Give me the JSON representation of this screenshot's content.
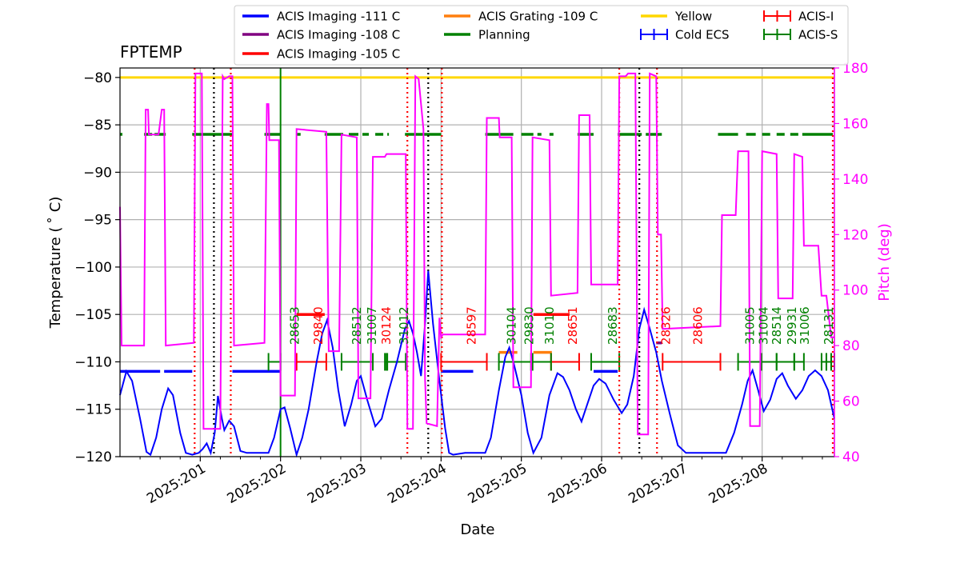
{
  "chart_data": {
    "type": "line",
    "title": "FPTEMP",
    "xlabel": "Date",
    "ylabel": "Temperature ($^\\circ$C)",
    "ylabel_display": "Temperature ( ˚ C)",
    "y2label": "Pitch (deg)",
    "x_axis": {
      "unit": "day of year 2025",
      "range": [
        200.0,
        208.9
      ],
      "ticks": [
        201,
        202,
        203,
        204,
        205,
        206,
        207,
        208
      ],
      "tick_labels": [
        "2025:201",
        "2025:202",
        "2025:203",
        "2025:204",
        "2025:205",
        "2025:206",
        "2025:207",
        "2025:208"
      ]
    },
    "y_axis": {
      "range": [
        -120,
        -79
      ],
      "ticks": [
        -120,
        -115,
        -110,
        -105,
        -100,
        -95,
        -90,
        -85,
        -80
      ],
      "tick_labels": [
        "−120",
        "−115",
        "−110",
        "−105",
        "−100",
        "−95",
        "−90",
        "−85",
        "−80"
      ]
    },
    "y2_axis": {
      "range": [
        40,
        180
      ],
      "ticks": [
        40,
        60,
        80,
        100,
        120,
        140,
        160,
        180
      ],
      "tick_labels": [
        "40",
        "60",
        "80",
        "100",
        "120",
        "140",
        "160",
        "180"
      ],
      "color": "#ff00ff"
    },
    "grid": true,
    "legend": {
      "placement": "top",
      "entries": [
        {
          "label": "ACIS Imaging -111 C",
          "color": "#0000ff",
          "style": "line"
        },
        {
          "label": "ACIS Imaging -108 C",
          "color": "#800080",
          "style": "line"
        },
        {
          "label": "ACIS Imaging -105 C",
          "color": "#ff0000",
          "style": "line"
        },
        {
          "label": "ACIS Grating -109 C",
          "color": "#ff7f0e",
          "style": "line"
        },
        {
          "label": "Planning",
          "color": "#008000",
          "style": "line"
        },
        {
          "label": "Yellow",
          "color": "#ffd700",
          "style": "line"
        },
        {
          "label": "Cold ECS",
          "color": "#0000ff",
          "style": "errorbar"
        },
        {
          "label": "ACIS-I",
          "color": "#ff0000",
          "style": "errorbar"
        },
        {
          "label": "ACIS-S",
          "color": "#008000",
          "style": "errorbar"
        }
      ]
    },
    "yellow_limit": -80,
    "planning_limit": -86,
    "imaging_111_level": -111,
    "fptemp_series": {
      "name": "FPTEMP",
      "color": "#0000ff",
      "points": [
        [
          200.0,
          -113.5
        ],
        [
          200.08,
          -111
        ],
        [
          200.15,
          -112
        ],
        [
          200.25,
          -116
        ],
        [
          200.33,
          -119.5
        ],
        [
          200.38,
          -119.8
        ],
        [
          200.45,
          -118
        ],
        [
          200.52,
          -115
        ],
        [
          200.6,
          -112.8
        ],
        [
          200.66,
          -113.5
        ],
        [
          200.75,
          -117.5
        ],
        [
          200.82,
          -119.6
        ],
        [
          200.9,
          -119.8
        ],
        [
          200.98,
          -119.6
        ],
        [
          201.03,
          -119.2
        ],
        [
          201.08,
          -118.6
        ],
        [
          201.13,
          -119.6
        ],
        [
          201.18,
          -117.5
        ],
        [
          201.22,
          -113.6
        ],
        [
          201.27,
          -116
        ],
        [
          201.3,
          -117.2
        ],
        [
          201.36,
          -116.2
        ],
        [
          201.42,
          -116.8
        ],
        [
          201.5,
          -119.4
        ],
        [
          201.58,
          -119.6
        ],
        [
          201.72,
          -119.6
        ],
        [
          201.85,
          -119.6
        ],
        [
          201.92,
          -118
        ],
        [
          202.0,
          -115
        ],
        [
          202.05,
          -114.8
        ],
        [
          202.12,
          -117
        ],
        [
          202.2,
          -119.8
        ],
        [
          202.27,
          -118
        ],
        [
          202.35,
          -115
        ],
        [
          202.45,
          -110
        ],
        [
          202.52,
          -107
        ],
        [
          202.58,
          -105.6
        ],
        [
          202.65,
          -108.5
        ],
        [
          202.72,
          -113
        ],
        [
          202.8,
          -116.8
        ],
        [
          202.88,
          -114.5
        ],
        [
          202.95,
          -112
        ],
        [
          203.0,
          -111.5
        ],
        [
          203.08,
          -114
        ],
        [
          203.18,
          -116.8
        ],
        [
          203.26,
          -116
        ],
        [
          203.35,
          -113
        ],
        [
          203.45,
          -110
        ],
        [
          203.55,
          -106.5
        ],
        [
          203.6,
          -105.7
        ],
        [
          203.65,
          -107
        ],
        [
          203.7,
          -109
        ],
        [
          203.75,
          -111.5
        ],
        [
          203.8,
          -106
        ],
        [
          203.84,
          -100.4
        ],
        [
          203.9,
          -106
        ],
        [
          203.98,
          -112
        ],
        [
          204.05,
          -117
        ],
        [
          204.1,
          -119.6
        ],
        [
          204.15,
          -119.8
        ],
        [
          204.3,
          -119.6
        ],
        [
          204.55,
          -119.6
        ],
        [
          204.62,
          -118
        ],
        [
          204.72,
          -113
        ],
        [
          204.8,
          -109.5
        ],
        [
          204.85,
          -108.5
        ],
        [
          204.9,
          -110
        ],
        [
          205.0,
          -113.5
        ],
        [
          205.08,
          -117.5
        ],
        [
          205.15,
          -119.6
        ],
        [
          205.25,
          -118
        ],
        [
          205.35,
          -113.5
        ],
        [
          205.45,
          -111.2
        ],
        [
          205.52,
          -111.6
        ],
        [
          205.6,
          -113
        ],
        [
          205.68,
          -115
        ],
        [
          205.75,
          -116.3
        ],
        [
          205.82,
          -114.5
        ],
        [
          205.9,
          -112.5
        ],
        [
          205.97,
          -111.8
        ],
        [
          206.05,
          -112.3
        ],
        [
          206.15,
          -114
        ],
        [
          206.25,
          -115.4
        ],
        [
          206.32,
          -114.5
        ],
        [
          206.4,
          -111.5
        ],
        [
          206.47,
          -106.5
        ],
        [
          206.53,
          -104.5
        ],
        [
          206.6,
          -106.5
        ],
        [
          206.68,
          -109
        ],
        [
          206.75,
          -112
        ],
        [
          206.85,
          -115.5
        ],
        [
          206.95,
          -118.8
        ],
        [
          207.05,
          -119.6
        ],
        [
          207.2,
          -119.6
        ],
        [
          207.4,
          -119.6
        ],
        [
          207.55,
          -119.6
        ],
        [
          207.65,
          -117.5
        ],
        [
          207.75,
          -114.5
        ],
        [
          207.82,
          -112
        ],
        [
          207.88,
          -110.9
        ],
        [
          207.95,
          -113
        ],
        [
          208.02,
          -115.2
        ],
        [
          208.1,
          -114
        ],
        [
          208.18,
          -111.8
        ],
        [
          208.25,
          -111.2
        ],
        [
          208.32,
          -112.5
        ],
        [
          208.42,
          -113.9
        ],
        [
          208.5,
          -113
        ],
        [
          208.58,
          -111.5
        ],
        [
          208.66,
          -110.9
        ],
        [
          208.74,
          -111.5
        ],
        [
          208.82,
          -113
        ],
        [
          208.9,
          -116
        ]
      ]
    },
    "pitch_series": {
      "name": "Pitch",
      "color": "#ff00ff",
      "points": [
        [
          200.0,
          130
        ],
        [
          200.02,
          80
        ],
        [
          200.3,
          80
        ],
        [
          200.32,
          165
        ],
        [
          200.35,
          165
        ],
        [
          200.36,
          156
        ],
        [
          200.48,
          156
        ],
        [
          200.52,
          165
        ],
        [
          200.55,
          165
        ],
        [
          200.57,
          80
        ],
        [
          200.92,
          81
        ],
        [
          200.94,
          178
        ],
        [
          201.02,
          178
        ],
        [
          201.04,
          50
        ],
        [
          201.25,
          50
        ],
        [
          201.28,
          177
        ],
        [
          201.3,
          176
        ],
        [
          201.36,
          177
        ],
        [
          201.4,
          177
        ],
        [
          201.42,
          80
        ],
        [
          201.8,
          81
        ],
        [
          201.83,
          167
        ],
        [
          201.85,
          167
        ],
        [
          201.86,
          154
        ],
        [
          201.98,
          154
        ],
        [
          202.0,
          62
        ],
        [
          202.18,
          62
        ],
        [
          202.2,
          158
        ],
        [
          202.57,
          157
        ],
        [
          202.6,
          78
        ],
        [
          202.73,
          78
        ],
        [
          202.76,
          156
        ],
        [
          202.95,
          155
        ],
        [
          202.97,
          61
        ],
        [
          203.12,
          61
        ],
        [
          203.15,
          148
        ],
        [
          203.3,
          148
        ],
        [
          203.32,
          149
        ],
        [
          203.56,
          149
        ],
        [
          203.58,
          50
        ],
        [
          203.65,
          50
        ],
        [
          203.68,
          177
        ],
        [
          203.72,
          176
        ],
        [
          203.78,
          158
        ],
        [
          203.8,
          68
        ],
        [
          203.82,
          52
        ],
        [
          203.95,
          51
        ],
        [
          203.98,
          90
        ],
        [
          204.0,
          83
        ],
        [
          204.02,
          84
        ],
        [
          204.55,
          84
        ],
        [
          204.57,
          162
        ],
        [
          204.72,
          162
        ],
        [
          204.73,
          155
        ],
        [
          204.88,
          155
        ],
        [
          204.9,
          65
        ],
        [
          205.12,
          65
        ],
        [
          205.14,
          155
        ],
        [
          205.35,
          154
        ],
        [
          205.37,
          98
        ],
        [
          205.7,
          99
        ],
        [
          205.72,
          163
        ],
        [
          205.85,
          163
        ],
        [
          205.87,
          102
        ],
        [
          206.2,
          102
        ],
        [
          206.22,
          177
        ],
        [
          206.3,
          177
        ],
        [
          206.33,
          178
        ],
        [
          206.42,
          178
        ],
        [
          206.45,
          48
        ],
        [
          206.58,
          48
        ],
        [
          206.6,
          178
        ],
        [
          206.68,
          177
        ],
        [
          206.7,
          120
        ],
        [
          206.74,
          120
        ],
        [
          206.76,
          86
        ],
        [
          207.48,
          87
        ],
        [
          207.5,
          127
        ],
        [
          207.67,
          127
        ],
        [
          207.7,
          150
        ],
        [
          207.83,
          150
        ],
        [
          207.85,
          51
        ],
        [
          207.97,
          51
        ],
        [
          208.0,
          150
        ],
        [
          208.18,
          149
        ],
        [
          208.2,
          97
        ],
        [
          208.38,
          97
        ],
        [
          208.4,
          149
        ],
        [
          208.5,
          148
        ],
        [
          208.52,
          116
        ],
        [
          208.7,
          116
        ],
        [
          208.74,
          98
        ],
        [
          208.8,
          98
        ],
        [
          208.86,
          83
        ],
        [
          208.9,
          83
        ]
      ]
    },
    "imaging_111_segments": [
      [
        200.0,
        200.5
      ],
      [
        200.55,
        200.9
      ],
      [
        201.4,
        202.0
      ],
      [
        204.0,
        204.4
      ],
      [
        205.9,
        206.2
      ]
    ],
    "planning_segments": [
      [
        200.0,
        200.03
      ],
      [
        200.3,
        200.4
      ],
      [
        200.43,
        200.57
      ],
      [
        200.9,
        201.4
      ],
      [
        201.8,
        202.0
      ],
      [
        202.2,
        202.25
      ],
      [
        202.55,
        202.78
      ],
      [
        202.85,
        202.97
      ],
      [
        203.02,
        203.1
      ],
      [
        203.18,
        203.28
      ],
      [
        203.33,
        203.35
      ],
      [
        203.55,
        204.0
      ],
      [
        204.55,
        204.9
      ],
      [
        205.0,
        205.15
      ],
      [
        205.2,
        205.25
      ],
      [
        205.35,
        205.4
      ],
      [
        205.7,
        205.9
      ],
      [
        206.2,
        206.5
      ],
      [
        206.55,
        206.75
      ],
      [
        207.45,
        207.7
      ],
      [
        207.8,
        207.92
      ],
      [
        208.0,
        208.1
      ],
      [
        208.18,
        208.28
      ],
      [
        208.35,
        208.45
      ],
      [
        208.5,
        208.88
      ]
    ],
    "imaging_105_segments": [
      [
        202.2,
        202.55
      ],
      [
        205.15,
        205.6
      ]
    ],
    "imaging_108_segments": [
      [
        206.68,
        206.75
      ]
    ],
    "grating_109_segments": [
      [
        204.72,
        204.95
      ],
      [
        205.15,
        205.38
      ]
    ],
    "acis_i_bars": [
      [
        202.2,
        202.57
      ],
      [
        204.0,
        204.57
      ],
      [
        205.37,
        205.72
      ],
      [
        206.76,
        207.48
      ]
    ],
    "acis_s_bars": [
      [
        201.85,
        202.0
      ],
      [
        202.76,
        203.15
      ],
      [
        203.3,
        203.33
      ],
      [
        203.32,
        203.56
      ],
      [
        204.72,
        205.14
      ],
      [
        205.12,
        205.37
      ],
      [
        205.87,
        206.22
      ],
      [
        207.7,
        207.99
      ],
      [
        207.99,
        208.18
      ],
      [
        208.18,
        208.4
      ],
      [
        208.4,
        208.52
      ],
      [
        208.74,
        208.8
      ],
      [
        208.8,
        208.86
      ],
      [
        208.86,
        208.9
      ]
    ],
    "obsid_labels": [
      {
        "text": "28653",
        "x": 202.18,
        "color": "#008000"
      },
      {
        "text": "29840",
        "x": 202.47,
        "color": "#ff0000"
      },
      {
        "text": "28512",
        "x": 202.95,
        "color": "#008000"
      },
      {
        "text": "31007",
        "x": 203.14,
        "color": "#008000"
      },
      {
        "text": "30124",
        "x": 203.32,
        "color": "#ff0000"
      },
      {
        "text": "31012",
        "x": 203.54,
        "color": "#008000"
      },
      {
        "text": "28597",
        "x": 204.38,
        "color": "#ff0000"
      },
      {
        "text": "30104",
        "x": 204.88,
        "color": "#008000"
      },
      {
        "text": "29830",
        "x": 205.1,
        "color": "#008000"
      },
      {
        "text": "31010",
        "x": 205.35,
        "color": "#008000"
      },
      {
        "text": "28651",
        "x": 205.64,
        "color": "#ff0000"
      },
      {
        "text": "28683",
        "x": 206.14,
        "color": "#008000"
      },
      {
        "text": "28326",
        "x": 206.8,
        "color": "#ff0000"
      },
      {
        "text": "28606",
        "x": 207.2,
        "color": "#ff0000"
      },
      {
        "text": "31005",
        "x": 207.85,
        "color": "#008000"
      },
      {
        "text": "31004",
        "x": 208.02,
        "color": "#008000"
      },
      {
        "text": "28514",
        "x": 208.18,
        "color": "#008000"
      },
      {
        "text": "29931",
        "x": 208.37,
        "color": "#008000"
      },
      {
        "text": "31006",
        "x": 208.53,
        "color": "#008000"
      },
      {
        "text": "28131",
        "x": 208.83,
        "color": "#008000"
      }
    ],
    "red_vlines": [
      200.93,
      201.38,
      203.58,
      204.01,
      206.22,
      206.69,
      208.88
    ],
    "black_vlines": [
      201.17,
      203.84,
      206.47
    ],
    "green_vlines": [
      202.0
    ]
  }
}
